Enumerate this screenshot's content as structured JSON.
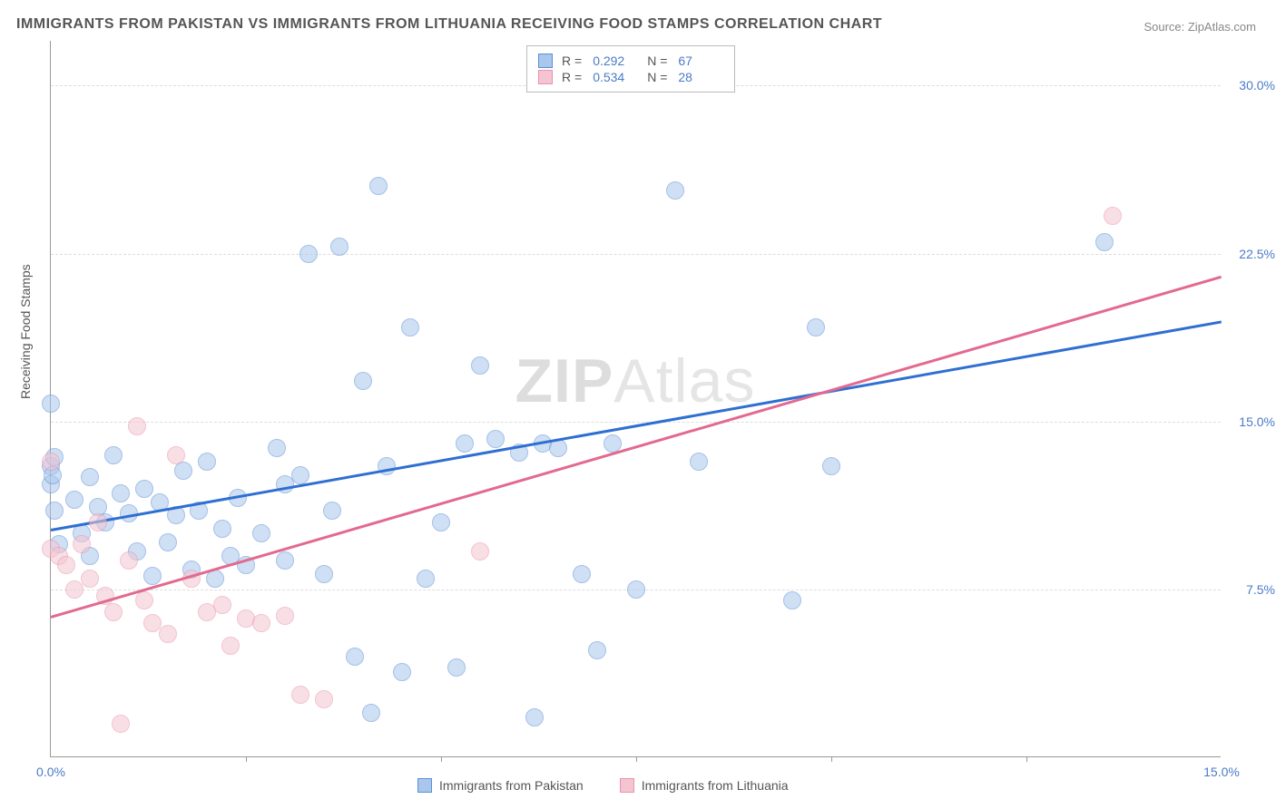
{
  "title": "IMMIGRANTS FROM PAKISTAN VS IMMIGRANTS FROM LITHUANIA RECEIVING FOOD STAMPS CORRELATION CHART",
  "source_prefix": "Source: ",
  "source_name": "ZipAtlas.com",
  "ylabel": "Receiving Food Stamps",
  "watermark_bold": "ZIP",
  "watermark_thin": "Atlas",
  "chart": {
    "type": "scatter",
    "xlim": [
      0,
      15
    ],
    "ylim": [
      0,
      32
    ],
    "xticks": [
      {
        "v": 0,
        "label": "0.0%"
      },
      {
        "v": 15,
        "label": "15.0%"
      }
    ],
    "x_minor_ticks": [
      2.5,
      5.0,
      7.5,
      10.0,
      12.5
    ],
    "yticks": [
      {
        "v": 7.5,
        "label": "7.5%"
      },
      {
        "v": 15.0,
        "label": "15.0%"
      },
      {
        "v": 22.5,
        "label": "22.5%"
      },
      {
        "v": 30.0,
        "label": "30.0%"
      }
    ],
    "background_color": "#ffffff",
    "grid_color": "#dddddd",
    "axis_color": "#999999",
    "tick_label_color": "#4a7bc8",
    "marker_radius": 10,
    "marker_opacity": 0.55,
    "series": [
      {
        "name": "Immigrants from Pakistan",
        "fill_color": "#a9c6ec",
        "stroke_color": "#5b8fd6",
        "trend_color": "#2e6fd1",
        "R": "0.292",
        "N": "67",
        "trend": {
          "x0": 0,
          "y0": 10.2,
          "x1": 15,
          "y1": 19.5
        },
        "points": [
          [
            0.0,
            12.2
          ],
          [
            0.0,
            13.0
          ],
          [
            0.0,
            15.8
          ],
          [
            0.05,
            11.0
          ],
          [
            0.1,
            9.5
          ],
          [
            0.3,
            11.5
          ],
          [
            0.4,
            10.0
          ],
          [
            0.5,
            12.5
          ],
          [
            0.6,
            11.2
          ],
          [
            0.7,
            10.5
          ],
          [
            0.8,
            13.5
          ],
          [
            0.9,
            11.8
          ],
          [
            1.0,
            10.9
          ],
          [
            1.1,
            9.2
          ],
          [
            1.2,
            12.0
          ],
          [
            1.3,
            8.1
          ],
          [
            1.4,
            11.4
          ],
          [
            1.5,
            9.6
          ],
          [
            1.6,
            10.8
          ],
          [
            1.7,
            12.8
          ],
          [
            1.8,
            8.4
          ],
          [
            1.9,
            11.0
          ],
          [
            2.0,
            13.2
          ],
          [
            2.1,
            8.0
          ],
          [
            2.2,
            10.2
          ],
          [
            2.3,
            9.0
          ],
          [
            2.4,
            11.6
          ],
          [
            2.5,
            8.6
          ],
          [
            2.7,
            10.0
          ],
          [
            2.9,
            13.8
          ],
          [
            3.0,
            8.8
          ],
          [
            3.2,
            12.6
          ],
          [
            3.3,
            22.5
          ],
          [
            3.5,
            8.2
          ],
          [
            3.6,
            11.0
          ],
          [
            3.7,
            22.8
          ],
          [
            3.9,
            4.5
          ],
          [
            4.0,
            16.8
          ],
          [
            4.1,
            2.0
          ],
          [
            4.2,
            25.5
          ],
          [
            4.3,
            13.0
          ],
          [
            4.5,
            3.8
          ],
          [
            4.6,
            19.2
          ],
          [
            4.8,
            8.0
          ],
          [
            5.0,
            10.5
          ],
          [
            5.2,
            4.0
          ],
          [
            5.3,
            14.0
          ],
          [
            5.5,
            17.5
          ],
          [
            5.7,
            14.2
          ],
          [
            6.0,
            13.6
          ],
          [
            6.2,
            1.8
          ],
          [
            6.3,
            14.0
          ],
          [
            6.5,
            13.8
          ],
          [
            6.8,
            8.2
          ],
          [
            7.0,
            4.8
          ],
          [
            7.2,
            14.0
          ],
          [
            7.5,
            7.5
          ],
          [
            8.0,
            25.3
          ],
          [
            8.3,
            13.2
          ],
          [
            9.5,
            7.0
          ],
          [
            9.8,
            19.2
          ],
          [
            10.0,
            13.0
          ],
          [
            13.5,
            23.0
          ],
          [
            0.05,
            13.4
          ],
          [
            0.02,
            12.6
          ],
          [
            0.5,
            9.0
          ],
          [
            3.0,
            12.2
          ]
        ]
      },
      {
        "name": "Immigrants from Lithuania",
        "fill_color": "#f4c5d1",
        "stroke_color": "#e893ad",
        "trend_color": "#e26a8f",
        "R": "0.534",
        "N": "28",
        "trend": {
          "x0": 0,
          "y0": 6.3,
          "x1": 15,
          "y1": 21.5
        },
        "points": [
          [
            0.0,
            13.2
          ],
          [
            0.0,
            9.3
          ],
          [
            0.1,
            9.0
          ],
          [
            0.2,
            8.6
          ],
          [
            0.3,
            7.5
          ],
          [
            0.4,
            9.5
          ],
          [
            0.5,
            8.0
          ],
          [
            0.6,
            10.5
          ],
          [
            0.7,
            7.2
          ],
          [
            0.8,
            6.5
          ],
          [
            0.9,
            1.5
          ],
          [
            1.0,
            8.8
          ],
          [
            1.1,
            14.8
          ],
          [
            1.2,
            7.0
          ],
          [
            1.3,
            6.0
          ],
          [
            1.5,
            5.5
          ],
          [
            1.6,
            13.5
          ],
          [
            1.8,
            8.0
          ],
          [
            2.0,
            6.5
          ],
          [
            2.2,
            6.8
          ],
          [
            2.3,
            5.0
          ],
          [
            2.5,
            6.2
          ],
          [
            2.7,
            6.0
          ],
          [
            3.0,
            6.3
          ],
          [
            3.2,
            2.8
          ],
          [
            3.5,
            2.6
          ],
          [
            5.5,
            9.2
          ],
          [
            13.6,
            24.2
          ]
        ]
      }
    ]
  },
  "legend_top": {
    "r_label": "R =",
    "n_label": "N ="
  }
}
